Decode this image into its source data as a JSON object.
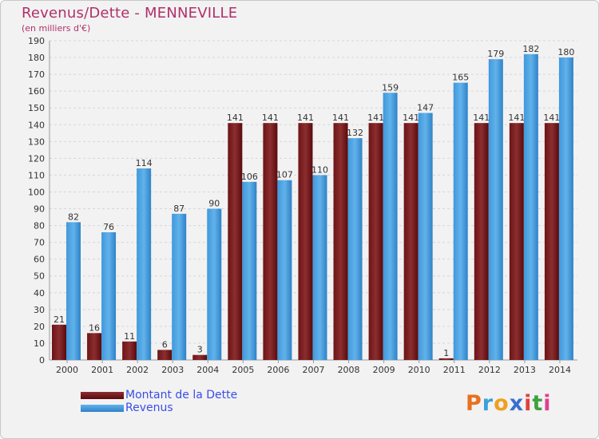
{
  "title": "Revenus/Dette - MENNEVILLE",
  "subtitle": "(en milliers d'€)",
  "legend": {
    "debt_label": "Montant de la Dette",
    "revenue_label": "Revenus"
  },
  "logo": {
    "letters": [
      "P",
      "r",
      "o",
      "x",
      "i",
      "t",
      "i"
    ]
  },
  "colors": {
    "debt_top": "#8b2e30",
    "debt_bottom": "#5a0a0c",
    "revenue_top": "#62b2ea",
    "revenue_bottom": "#2e82c8",
    "title": "#b0306a",
    "legend_text": "#3a4ee6"
  },
  "chart_data": {
    "type": "bar",
    "title": "Revenus/Dette - MENNEVILLE",
    "ylabel": "(en milliers d'€)",
    "xlabel": "",
    "ylim": [
      0,
      190
    ],
    "ytick_step": 10,
    "grid": true,
    "categories": [
      "2000",
      "2001",
      "2002",
      "2003",
      "2004",
      "2005",
      "2006",
      "2007",
      "2008",
      "2009",
      "2010",
      "2011",
      "2012",
      "2013",
      "2014"
    ],
    "series": [
      {
        "name": "Montant de la Dette",
        "values": [
          21,
          16,
          11,
          6,
          3,
          141,
          141,
          141,
          141,
          141,
          141,
          1,
          141,
          141,
          141
        ],
        "labels": [
          "21",
          "16",
          "11",
          "6",
          "3",
          "141",
          "141",
          "141",
          "141",
          "141",
          "141",
          "1",
          "141",
          "141",
          "141"
        ]
      },
      {
        "name": "Revenus",
        "values": [
          82,
          76,
          114,
          87,
          90,
          106,
          107,
          110,
          132,
          159,
          147,
          165,
          179,
          182,
          180
        ],
        "labels": [
          "82",
          "76",
          "114",
          "87",
          "90",
          "106",
          "107",
          "110",
          "132",
          "159",
          "147",
          "165",
          "179",
          "182",
          "180"
        ]
      }
    ]
  }
}
